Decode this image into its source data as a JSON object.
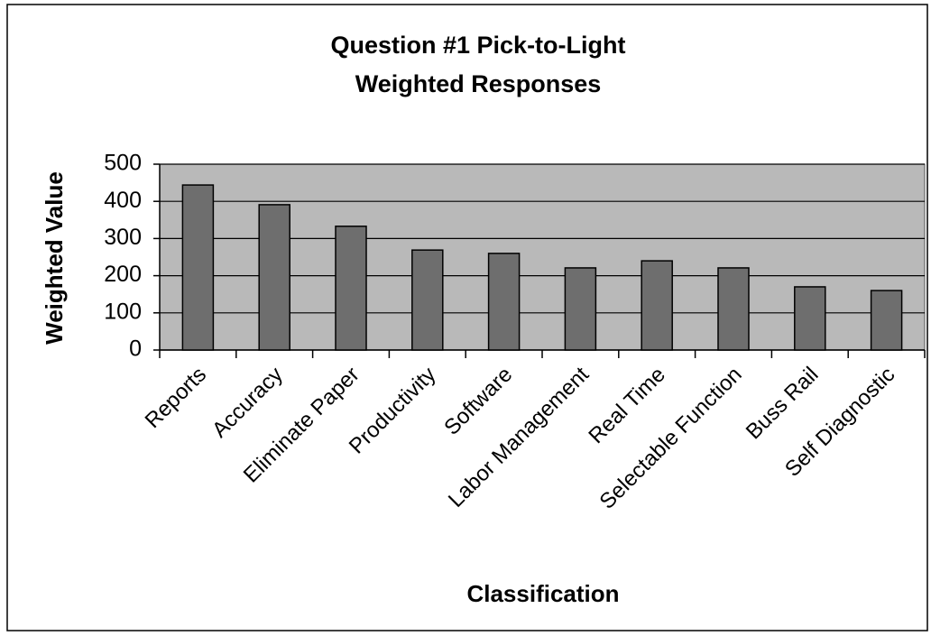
{
  "chart_data": {
    "type": "bar",
    "title": [
      "Question #1 Pick-to-Light",
      "Weighted Responses"
    ],
    "x_label": "Classification",
    "y_label": "Weighted Value",
    "categories": [
      "Reports",
      "Accuracy",
      "Eliminate Paper",
      "Productivity",
      "Software",
      "Labor Management",
      "Real Time",
      "Selectable Function",
      "Buss Rail",
      "Self Diagnostic"
    ],
    "values": [
      444,
      391,
      333,
      269,
      260,
      221,
      240,
      221,
      170,
      160
    ],
    "color": "#6e6e6e",
    "ylim": [
      0,
      500
    ],
    "yticks": [
      0,
      100,
      200,
      300,
      400,
      500
    ],
    "grid": true
  }
}
